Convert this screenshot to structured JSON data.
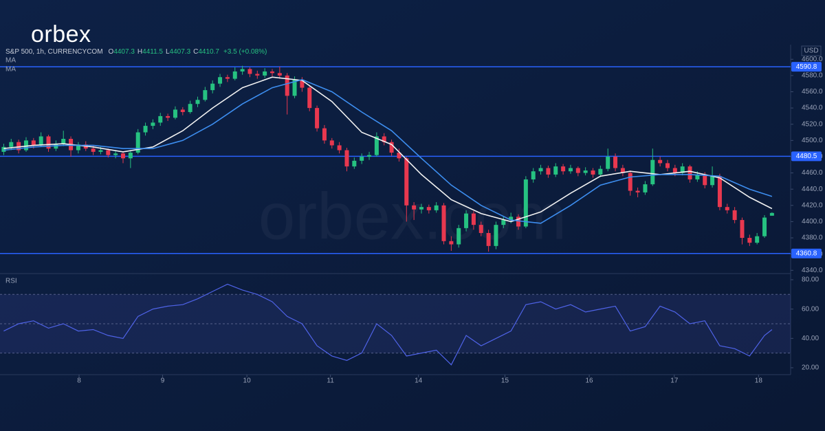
{
  "logo": "orbex",
  "watermark": "orbex.com",
  "chart_data": [
    {
      "type": "candlestick",
      "symbol": "S&P 500, 1h, CURRENCYCOM",
      "ohlc_labels": [
        "O",
        "H",
        "L",
        "C"
      ],
      "change": "+3.5 (+0.08%)",
      "currency": "USD",
      "up_color": "#26c281",
      "down_color": "#e8384f",
      "ohlc": [
        [
          4486,
          4496,
          4482,
          4492
        ],
        [
          4492,
          4502,
          4488,
          4498
        ],
        [
          4498,
          4501,
          4484,
          4488
        ],
        [
          4488,
          4504,
          4486,
          4500
        ],
        [
          4500,
          4503,
          4490,
          4494
        ],
        [
          4494,
          4510,
          4492,
          4505
        ],
        [
          4505,
          4507,
          4486,
          4490
        ],
        [
          4490,
          4500,
          4487,
          4496
        ],
        [
          4496,
          4512,
          4493,
          4502
        ],
        [
          4502,
          4505,
          4480,
          4488
        ],
        [
          4488,
          4498,
          4484,
          4495
        ],
        [
          4495,
          4499,
          4487,
          4490
        ],
        [
          4490,
          4494,
          4482,
          4486
        ],
        [
          4486,
          4492,
          4483,
          4488
        ],
        [
          4488,
          4490,
          4479,
          4482
        ],
        [
          4482,
          4488,
          4478,
          4484
        ],
        [
          4484,
          4486,
          4472,
          4478
        ],
        [
          4478,
          4488,
          4466,
          4485
        ],
        [
          4485,
          4514,
          4483,
          4510
        ],
        [
          4510,
          4522,
          4506,
          4518
        ],
        [
          4518,
          4526,
          4514,
          4522
        ],
        [
          4522,
          4534,
          4518,
          4530
        ],
        [
          4530,
          4533,
          4524,
          4528
        ],
        [
          4528,
          4542,
          4526,
          4538
        ],
        [
          4538,
          4541,
          4531,
          4535
        ],
        [
          4535,
          4549,
          4533,
          4545
        ],
        [
          4545,
          4554,
          4541,
          4550
        ],
        [
          4550,
          4566,
          4548,
          4562
        ],
        [
          4562,
          4574,
          4558,
          4570
        ],
        [
          4570,
          4582,
          4566,
          4578
        ],
        [
          4578,
          4581,
          4572,
          4576
        ],
        [
          4576,
          4590,
          4574,
          4585
        ],
        [
          4585,
          4592,
          4581,
          4588
        ],
        [
          4588,
          4590,
          4578,
          4582
        ],
        [
          4582,
          4586,
          4576,
          4580
        ],
        [
          4580,
          4589,
          4577,
          4585
        ],
        [
          4585,
          4588,
          4579,
          4583
        ],
        [
          4583,
          4591,
          4576,
          4580
        ],
        [
          4580,
          4583,
          4532,
          4555
        ],
        [
          4555,
          4579,
          4552,
          4575
        ],
        [
          4575,
          4578,
          4560,
          4565
        ],
        [
          4565,
          4568,
          4536,
          4540
        ],
        [
          4540,
          4543,
          4511,
          4515
        ],
        [
          4515,
          4519,
          4496,
          4500
        ],
        [
          4500,
          4503,
          4490,
          4494
        ],
        [
          4494,
          4498,
          4484,
          4488
        ],
        [
          4488,
          4491,
          4462,
          4468
        ],
        [
          4468,
          4479,
          4465,
          4475
        ],
        [
          4475,
          4484,
          4471,
          4480
        ],
        [
          4480,
          4486,
          4476,
          4482
        ],
        [
          4482,
          4510,
          4480,
          4505
        ],
        [
          4505,
          4509,
          4494,
          4498
        ],
        [
          4498,
          4501,
          4481,
          4485
        ],
        [
          4485,
          4490,
          4474,
          4478
        ],
        [
          4478,
          4480,
          4400,
          4420
        ],
        [
          4420,
          4424,
          4402,
          4415
        ],
        [
          4415,
          4422,
          4410,
          4418
        ],
        [
          4418,
          4421,
          4410,
          4414
        ],
        [
          4414,
          4424,
          4411,
          4420
        ],
        [
          4420,
          4423,
          4372,
          4376
        ],
        [
          4376,
          4382,
          4364,
          4372
        ],
        [
          4372,
          4396,
          4368,
          4392
        ],
        [
          4392,
          4414,
          4388,
          4410
        ],
        [
          4410,
          4413,
          4390,
          4396
        ],
        [
          4396,
          4400,
          4382,
          4386
        ],
        [
          4386,
          4390,
          4363,
          4370
        ],
        [
          4370,
          4400,
          4366,
          4396
        ],
        [
          4396,
          4406,
          4392,
          4402
        ],
        [
          4402,
          4411,
          4398,
          4406
        ],
        [
          4406,
          4409,
          4390,
          4394
        ],
        [
          4394,
          4456,
          4392,
          4452
        ],
        [
          4452,
          4466,
          4448,
          4462
        ],
        [
          4462,
          4470,
          4458,
          4466
        ],
        [
          4466,
          4469,
          4454,
          4458
        ],
        [
          4458,
          4472,
          4455,
          4468
        ],
        [
          4468,
          4471,
          4458,
          4462
        ],
        [
          4462,
          4470,
          4459,
          4466
        ],
        [
          4466,
          4468,
          4456,
          4460
        ],
        [
          4460,
          4467,
          4457,
          4463
        ],
        [
          4463,
          4466,
          4454,
          4458
        ],
        [
          4458,
          4469,
          4455,
          4465
        ],
        [
          4465,
          4490,
          4462,
          4480
        ],
        [
          4480,
          4484,
          4462,
          4466
        ],
        [
          4466,
          4470,
          4456,
          4460
        ],
        [
          4460,
          4463,
          4432,
          4438
        ],
        [
          4438,
          4442,
          4430,
          4436
        ],
        [
          4436,
          4450,
          4433,
          4446
        ],
        [
          4446,
          4490,
          4444,
          4476
        ],
        [
          4476,
          4480,
          4468,
          4472
        ],
        [
          4472,
          4476,
          4462,
          4466
        ],
        [
          4466,
          4470,
          4456,
          4460
        ],
        [
          4460,
          4472,
          4457,
          4468
        ],
        [
          4468,
          4470,
          4448,
          4452
        ],
        [
          4452,
          4462,
          4449,
          4458
        ],
        [
          4458,
          4461,
          4441,
          4445
        ],
        [
          4445,
          4468,
          4442,
          4456
        ],
        [
          4456,
          4459,
          4414,
          4418
        ],
        [
          4418,
          4422,
          4410,
          4414
        ],
        [
          4414,
          4418,
          4398,
          4402
        ],
        [
          4402,
          4405,
          4372,
          4380
        ],
        [
          4380,
          4384,
          4370,
          4374
        ],
        [
          4374,
          4386,
          4372,
          4382
        ],
        [
          4382,
          4408,
          4380,
          4405
        ],
        [
          4407.3,
          4411.5,
          4407.3,
          4410.7
        ]
      ],
      "series": [
        {
          "name": "MA",
          "color": "#f2f2f2",
          "x": [
            0,
            4,
            8,
            12,
            16,
            20,
            24,
            28,
            32,
            36,
            40,
            44,
            48,
            52,
            56,
            60,
            64,
            68,
            72,
            76,
            80,
            84,
            88,
            92,
            96,
            100,
            103
          ],
          "values": [
            4490,
            4494,
            4496,
            4492,
            4486,
            4492,
            4512,
            4540,
            4565,
            4578,
            4574,
            4548,
            4510,
            4495,
            4458,
            4427,
            4410,
            4400,
            4412,
            4435,
            4456,
            4462,
            4458,
            4462,
            4454,
            4430,
            4416
          ]
        },
        {
          "name": "MA",
          "color": "#3d8ef0",
          "x": [
            0,
            4,
            8,
            12,
            16,
            20,
            24,
            28,
            32,
            36,
            40,
            44,
            48,
            52,
            56,
            60,
            64,
            68,
            72,
            76,
            80,
            84,
            88,
            92,
            96,
            100,
            103
          ],
          "values": [
            4488,
            4492,
            4494,
            4494,
            4490,
            4490,
            4500,
            4520,
            4545,
            4565,
            4575,
            4560,
            4535,
            4512,
            4478,
            4445,
            4420,
            4402,
            4398,
            4420,
            4445,
            4455,
            4458,
            4458,
            4456,
            4440,
            4431
          ]
        }
      ],
      "levels": [
        4590.8,
        4480.5,
        4360.8
      ],
      "level_color": "#2962ff",
      "xlim": [
        -0.5,
        105.5
      ],
      "xticks": [
        {
          "value": 10.1,
          "label": "8"
        },
        {
          "value": 21.3,
          "label": "9"
        },
        {
          "value": 32.6,
          "label": "10"
        },
        {
          "value": 43.8,
          "label": "11"
        },
        {
          "value": 55.6,
          "label": "14"
        },
        {
          "value": 67.2,
          "label": "15"
        },
        {
          "value": 78.5,
          "label": "16"
        },
        {
          "value": 89.9,
          "label": "17"
        },
        {
          "value": 101.2,
          "label": "18"
        }
      ],
      "ylim": [
        4336,
        4618
      ],
      "yticks": [
        {
          "value": 4340,
          "label": "4340.0"
        },
        {
          "value": 4360,
          "label": "4360.0"
        },
        {
          "value": 4380,
          "label": "4380.0"
        },
        {
          "value": 4400,
          "label": "4400.0"
        },
        {
          "value": 4420,
          "label": "4420.0"
        },
        {
          "value": 4440,
          "label": "4440.0"
        },
        {
          "value": 4460,
          "label": "4460.0"
        },
        {
          "value": 4480,
          "label": "4480.0"
        },
        {
          "value": 4500,
          "label": "4500.0"
        },
        {
          "value": 4520,
          "label": "4520.0"
        },
        {
          "value": 4540,
          "label": "4540.0"
        },
        {
          "value": 4560,
          "label": "4560.0"
        },
        {
          "value": 4580,
          "label": "4580.0"
        },
        {
          "value": 4600,
          "label": "4600.0"
        }
      ]
    },
    {
      "type": "line",
      "title": "RSI",
      "color": "#4f63e8",
      "x": [
        0,
        2,
        4,
        6,
        8,
        10,
        12,
        14,
        16,
        18,
        20,
        22,
        24,
        26,
        28,
        30,
        32,
        34,
        36,
        38,
        40,
        42,
        44,
        46,
        48,
        50,
        52,
        54,
        56,
        58,
        60,
        62,
        64,
        66,
        68,
        70,
        72,
        74,
        76,
        78,
        80,
        82,
        84,
        86,
        88,
        90,
        92,
        94,
        96,
        98,
        100,
        102,
        103
      ],
      "values": [
        45,
        50,
        52,
        47,
        50,
        45,
        46,
        42,
        40,
        55,
        60,
        62,
        63,
        67,
        72,
        77,
        73,
        70,
        65,
        55,
        50,
        35,
        28,
        25,
        30,
        50,
        42,
        28,
        30,
        32,
        22,
        42,
        35,
        40,
        45,
        63,
        65,
        60,
        63,
        58,
        60,
        62,
        45,
        48,
        62,
        58,
        50,
        52,
        35,
        33,
        28,
        42,
        46
      ],
      "guides": [
        30,
        50,
        70
      ],
      "xlim": [
        -0.5,
        105.5
      ],
      "ylim": [
        15.3,
        84.2
      ],
      "yticks": [
        {
          "value": 20,
          "label": "20.00"
        },
        {
          "value": 40,
          "label": "40.00"
        },
        {
          "value": 60,
          "label": "60.00"
        },
        {
          "value": 80,
          "label": "80.00"
        }
      ]
    }
  ]
}
